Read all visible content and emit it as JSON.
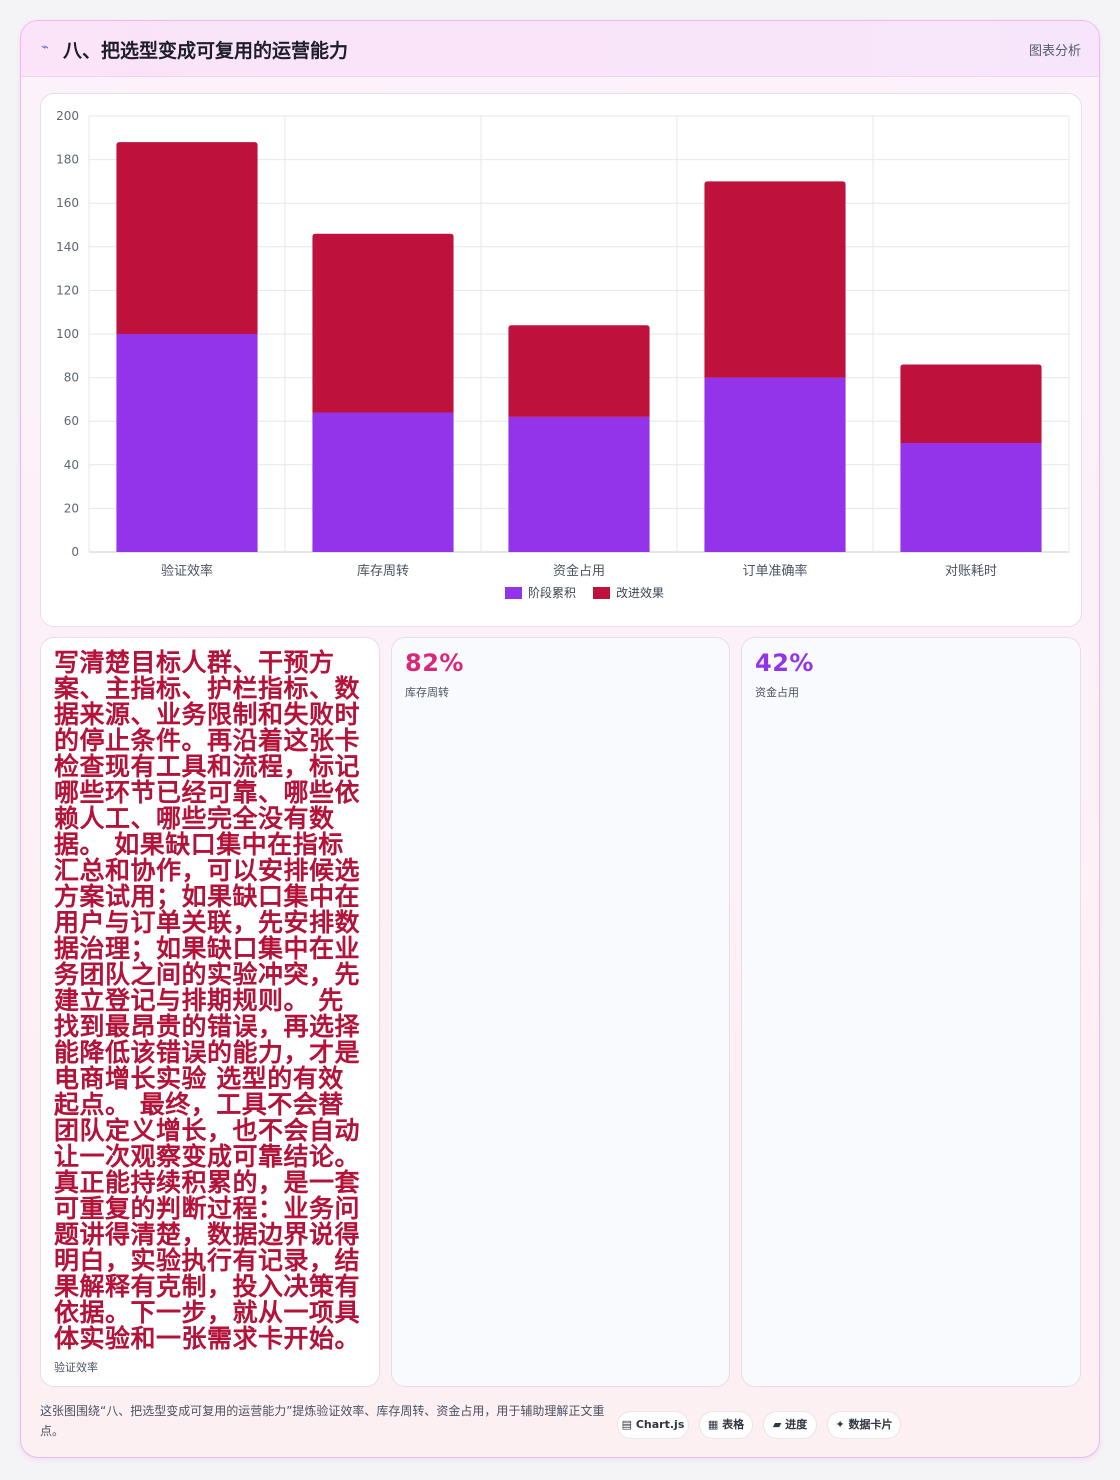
{
  "header": {
    "icon": "trend-line-icon",
    "title": "八、把选型变成可复用的运营能力",
    "tag": "图表分析"
  },
  "chart_data": {
    "type": "bar",
    "stacked": true,
    "categories": [
      "验证效率",
      "库存周转",
      "资金占用",
      "订单准确率",
      "对账耗时"
    ],
    "series": [
      {
        "name": "阶段累积",
        "color": "#9333ea",
        "values": [
          100,
          64,
          62,
          80,
          50
        ]
      },
      {
        "name": "改进效果",
        "color": "#be123c",
        "values": [
          88,
          82,
          42,
          90,
          36
        ]
      }
    ],
    "ylim": [
      0,
      200
    ],
    "yticks": [
      0,
      20,
      40,
      60,
      80,
      100,
      120,
      140,
      160,
      180,
      200
    ],
    "grid": true,
    "legend_position": "bottom"
  },
  "tiles": [
    {
      "value": "写清楚目标人群、干预方案、主指标、护栏指标、数据来源、业务限制和失败时的停止条件。再沿着这张卡检查现有工具和流程，标记哪些环节已经可靠、哪些依赖人工、哪些完全没有数据。 如果缺口集中在指标汇总和协作，可以安排候选方案试用；如果缺口集中在用户与订单关联，先安排数据治理；如果缺口集中在业务团队之间的实验冲突，先建立登记与排期规则。 先找到最昂贵的错误，再选择能降低该错误的能力，才是电商增长实验 选型的有效起点。 最终，工具不会替团队定义增长，也不会自动让一次观察变成可靠结论。真正能持续积累的，是一套可重复的判断过程：业务问题讲得清楚，数据边界说得明白，实验执行有记录，结果解释有克制，投入决策有依据。下一步，就从一项具体实验和一张需求卡开始。",
      "label": "验证效率",
      "color": "#b5123a"
    },
    {
      "value": "82%",
      "label": "库存周转",
      "color": "#db2777"
    },
    {
      "value": "42%",
      "label": "资金占用",
      "color": "#9333ea"
    }
  ],
  "footer": {
    "text": "这张图围绕“八、把选型变成可复用的运营能力”提炼验证效率、库存周转、资金占用，用于辅助理解正文重点。",
    "chips": [
      {
        "icon": "chart-icon",
        "glyph": "▤",
        "label": "Chart.js"
      },
      {
        "icon": "table-icon",
        "glyph": "▦",
        "label": "表格"
      },
      {
        "icon": "progress-icon",
        "glyph": "▰",
        "label": "进度"
      },
      {
        "icon": "sparkle-icon",
        "glyph": "✦",
        "label": "数据卡片"
      }
    ]
  }
}
